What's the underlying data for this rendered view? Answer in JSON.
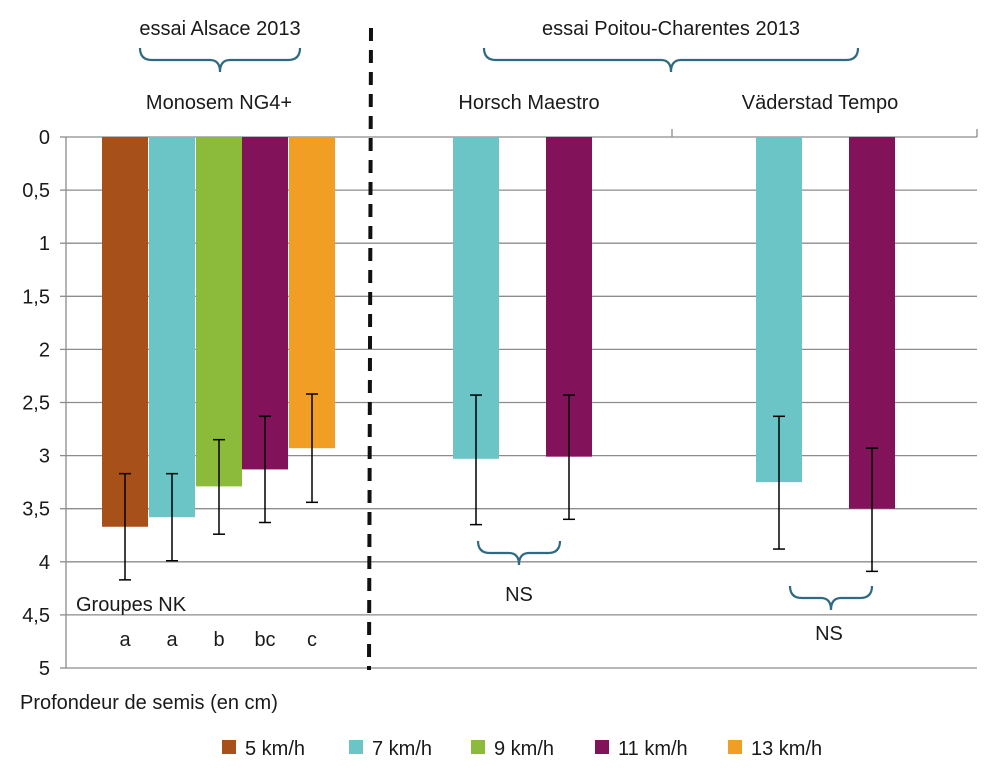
{
  "chart_data": {
    "type": "bar",
    "ylabel": "Profondeur de semis (en cm)",
    "y_ticks": [
      "0",
      "0,5",
      "1",
      "1,5",
      "2",
      "2,5",
      "3",
      "3,5",
      "4",
      "4,5",
      "5"
    ],
    "ylim": [
      0,
      5
    ],
    "y_inverted": true,
    "grid": true,
    "legend_position": "bottom",
    "series": [
      {
        "name": "5 km/h",
        "color": "#a8501a"
      },
      {
        "name": "7 km/h",
        "color": "#6bc4c6"
      },
      {
        "name": "9 km/h",
        "color": "#8cbb3c"
      },
      {
        "name": "11 km/h",
        "color": "#82125a"
      },
      {
        "name": "13 km/h",
        "color": "#f19f24"
      }
    ],
    "trials": [
      {
        "title": "essai Alsace 2013",
        "drills": [
          {
            "name": "Monosem NG4+",
            "bars": [
              {
                "series": "5 km/h",
                "value": 3.67,
                "err_low": 3.17,
                "err_high": 4.17
              },
              {
                "series": "7 km/h",
                "value": 3.58,
                "err_low": 3.17,
                "err_high": 3.99
              },
              {
                "series": "9 km/h",
                "value": 3.29,
                "err_low": 2.85,
                "err_high": 3.74
              },
              {
                "series": "11 km/h",
                "value": 3.13,
                "err_low": 2.63,
                "err_high": 3.63
              },
              {
                "series": "13 km/h",
                "value": 2.93,
                "err_low": 2.42,
                "err_high": 3.44
              }
            ],
            "groups_label": "Groupes NK",
            "groups": [
              "a",
              "a",
              "b",
              "bc",
              "c"
            ]
          }
        ]
      },
      {
        "title": "essai Poitou-Charentes 2013",
        "drills": [
          {
            "name": "Horsch Maestro",
            "bars": [
              {
                "series": "7 km/h",
                "value": 3.03,
                "err_low": 2.43,
                "err_high": 3.65
              },
              {
                "series": "11 km/h",
                "value": 3.01,
                "err_low": 2.43,
                "err_high": 3.6
              }
            ],
            "significance": "NS"
          },
          {
            "name": "Väderstad Tempo",
            "bars": [
              {
                "series": "7 km/h",
                "value": 3.25,
                "err_low": 2.63,
                "err_high": 3.88
              },
              {
                "series": "11 km/h",
                "value": 3.5,
                "err_low": 2.93,
                "err_high": 4.09
              }
            ],
            "significance": "NS"
          }
        ]
      }
    ]
  }
}
